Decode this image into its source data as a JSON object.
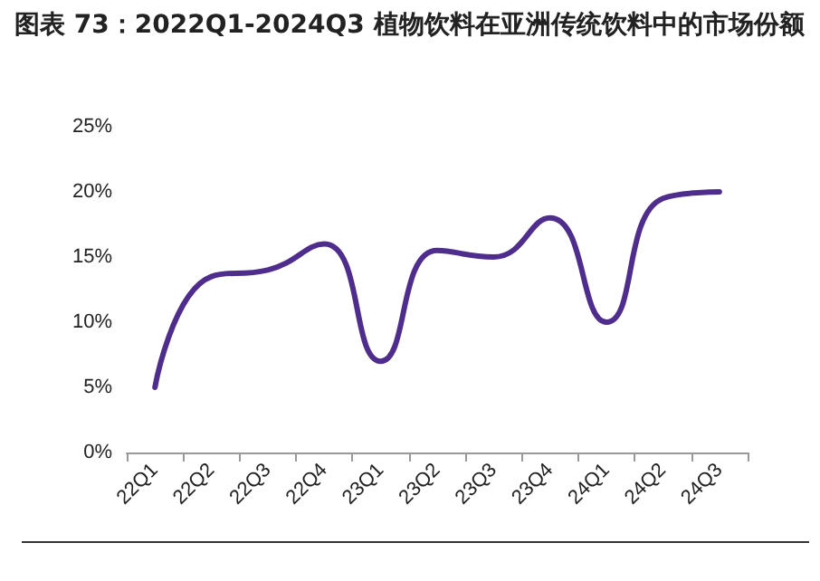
{
  "chart_data": {
    "type": "line",
    "title": "图表 73：2022Q1-2024Q3 植物饮料在亚洲传统饮料中的市场份额",
    "categories": [
      "22Q1",
      "22Q2",
      "22Q3",
      "22Q4",
      "23Q1",
      "23Q2",
      "23Q3",
      "23Q4",
      "24Q1",
      "24Q2",
      "24Q3"
    ],
    "series": [
      {
        "color": "#4e2d8c",
        "values": [
          5,
          13.5,
          14,
          16,
          7,
          15.5,
          15,
          18,
          10,
          19.5,
          20
        ]
      }
    ],
    "ylim": [
      0,
      25
    ],
    "yticks": [
      {
        "value": 0,
        "label": "0%"
      },
      {
        "value": 5,
        "label": "5%"
      },
      {
        "value": 10,
        "label": "10%"
      },
      {
        "value": 15,
        "label": "15%"
      },
      {
        "value": 20,
        "label": "20%"
      },
      {
        "value": 25,
        "label": "25%"
      }
    ],
    "grid": false,
    "marker": "none",
    "line_style": "solid"
  }
}
